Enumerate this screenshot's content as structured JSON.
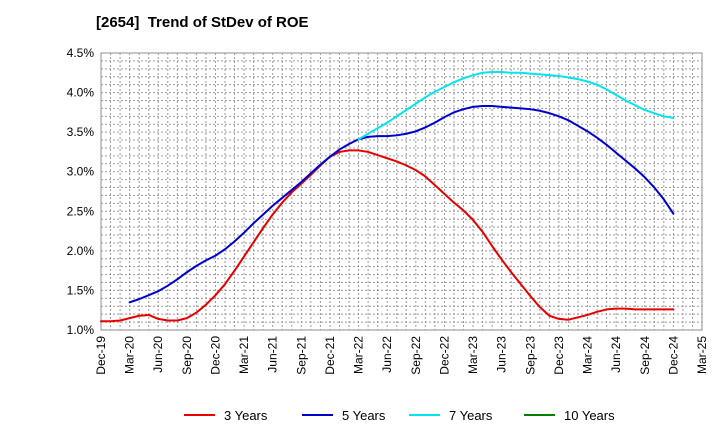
{
  "chart_data": {
    "type": "line",
    "title": "[2654]  Trend of StDev of ROE",
    "xlabel": "",
    "ylabel": "",
    "x_ticks": [
      "Dec-19",
      "Mar-20",
      "Jun-20",
      "Sep-20",
      "Dec-20",
      "Mar-21",
      "Jun-21",
      "Sep-21",
      "Dec-21",
      "Mar-22",
      "Jun-22",
      "Sep-22",
      "Dec-22",
      "Mar-23",
      "Jun-23",
      "Sep-23",
      "Dec-23",
      "Mar-24",
      "Jun-24",
      "Sep-24",
      "Dec-24",
      "Mar-25"
    ],
    "y_ticks": [
      "1.0%",
      "1.5%",
      "2.0%",
      "2.5%",
      "3.0%",
      "3.5%",
      "4.0%",
      "4.5%"
    ],
    "ylim": [
      1.0,
      4.5
    ],
    "grid": true,
    "legend_position": "bottom",
    "series": [
      {
        "name": "3 Years",
        "color": "#e60000",
        "points": [
          [
            "Dec-19",
            1.11
          ],
          [
            "Jan-20",
            1.11
          ],
          [
            "Feb-20",
            1.12
          ],
          [
            "Mar-20",
            1.15
          ],
          [
            "Apr-20",
            1.18
          ],
          [
            "May-20",
            1.19
          ],
          [
            "Jun-20",
            1.14
          ],
          [
            "Jul-20",
            1.12
          ],
          [
            "Aug-20",
            1.12
          ],
          [
            "Sep-20",
            1.15
          ],
          [
            "Oct-20",
            1.22
          ],
          [
            "Nov-20",
            1.32
          ],
          [
            "Dec-20",
            1.44
          ],
          [
            "Jan-21",
            1.58
          ],
          [
            "Feb-21",
            1.75
          ],
          [
            "Mar-21",
            1.93
          ],
          [
            "Apr-21",
            2.11
          ],
          [
            "May-21",
            2.29
          ],
          [
            "Jun-21",
            2.46
          ],
          [
            "Jul-21",
            2.61
          ],
          [
            "Aug-21",
            2.74
          ],
          [
            "Sep-21",
            2.85
          ],
          [
            "Oct-21",
            2.96
          ],
          [
            "Nov-21",
            3.08
          ],
          [
            "Dec-21",
            3.19
          ],
          [
            "Jan-22",
            3.25
          ],
          [
            "Feb-22",
            3.27
          ],
          [
            "Mar-22",
            3.27
          ],
          [
            "Apr-22",
            3.25
          ],
          [
            "May-22",
            3.21
          ],
          [
            "Jun-22",
            3.17
          ],
          [
            "Jul-22",
            3.13
          ],
          [
            "Aug-22",
            3.08
          ],
          [
            "Sep-22",
            3.02
          ],
          [
            "Oct-22",
            2.94
          ],
          [
            "Nov-22",
            2.83
          ],
          [
            "Dec-22",
            2.72
          ],
          [
            "Jan-23",
            2.61
          ],
          [
            "Feb-23",
            2.51
          ],
          [
            "Mar-23",
            2.39
          ],
          [
            "Apr-23",
            2.24
          ],
          [
            "May-23",
            2.06
          ],
          [
            "Jun-23",
            1.89
          ],
          [
            "Jul-23",
            1.73
          ],
          [
            "Aug-23",
            1.58
          ],
          [
            "Sep-23",
            1.43
          ],
          [
            "Oct-23",
            1.29
          ],
          [
            "Nov-23",
            1.18
          ],
          [
            "Dec-23",
            1.14
          ],
          [
            "Jan-24",
            1.13
          ],
          [
            "Feb-24",
            1.16
          ],
          [
            "Mar-24",
            1.19
          ],
          [
            "Apr-24",
            1.23
          ],
          [
            "May-24",
            1.26
          ],
          [
            "Jun-24",
            1.27
          ],
          [
            "Jul-24",
            1.27
          ],
          [
            "Aug-24",
            1.26
          ],
          [
            "Sep-24",
            1.26
          ],
          [
            "Oct-24",
            1.26
          ],
          [
            "Nov-24",
            1.26
          ],
          [
            "Dec-24",
            1.26
          ]
        ]
      },
      {
        "name": "5 Years",
        "color": "#0000cc",
        "points": [
          [
            "Mar-20",
            1.35
          ],
          [
            "Apr-20",
            1.39
          ],
          [
            "May-20",
            1.44
          ],
          [
            "Jun-20",
            1.49
          ],
          [
            "Jul-20",
            1.56
          ],
          [
            "Aug-20",
            1.64
          ],
          [
            "Sep-20",
            1.73
          ],
          [
            "Oct-20",
            1.81
          ],
          [
            "Nov-20",
            1.88
          ],
          [
            "Dec-20",
            1.94
          ],
          [
            "Jan-21",
            2.02
          ],
          [
            "Feb-21",
            2.12
          ],
          [
            "Mar-21",
            2.23
          ],
          [
            "Apr-21",
            2.35
          ],
          [
            "May-21",
            2.46
          ],
          [
            "Jun-21",
            2.57
          ],
          [
            "Jul-21",
            2.67
          ],
          [
            "Aug-21",
            2.77
          ],
          [
            "Sep-21",
            2.87
          ],
          [
            "Oct-21",
            2.98
          ],
          [
            "Nov-21",
            3.09
          ],
          [
            "Dec-21",
            3.19
          ],
          [
            "Jan-22",
            3.28
          ],
          [
            "Feb-22",
            3.35
          ],
          [
            "Mar-22",
            3.41
          ],
          [
            "Apr-22",
            3.44
          ],
          [
            "May-22",
            3.45
          ],
          [
            "Jun-22",
            3.45
          ],
          [
            "Jul-22",
            3.46
          ],
          [
            "Aug-22",
            3.48
          ],
          [
            "Sep-22",
            3.51
          ],
          [
            "Oct-22",
            3.56
          ],
          [
            "Nov-22",
            3.62
          ],
          [
            "Dec-22",
            3.69
          ],
          [
            "Jan-23",
            3.75
          ],
          [
            "Feb-23",
            3.79
          ],
          [
            "Mar-23",
            3.82
          ],
          [
            "Apr-23",
            3.83
          ],
          [
            "May-23",
            3.83
          ],
          [
            "Jun-23",
            3.82
          ],
          [
            "Jul-23",
            3.81
          ],
          [
            "Aug-23",
            3.8
          ],
          [
            "Sep-23",
            3.79
          ],
          [
            "Oct-23",
            3.77
          ],
          [
            "Nov-23",
            3.74
          ],
          [
            "Dec-23",
            3.7
          ],
          [
            "Jan-24",
            3.65
          ],
          [
            "Feb-24",
            3.58
          ],
          [
            "Mar-24",
            3.51
          ],
          [
            "Apr-24",
            3.43
          ],
          [
            "May-24",
            3.34
          ],
          [
            "Jun-24",
            3.24
          ],
          [
            "Jul-24",
            3.14
          ],
          [
            "Aug-24",
            3.04
          ],
          [
            "Sep-24",
            2.93
          ],
          [
            "Oct-24",
            2.8
          ],
          [
            "Nov-24",
            2.65
          ],
          [
            "Dec-24",
            2.47
          ]
        ]
      },
      {
        "name": "7 Years",
        "color": "#00e5ee",
        "points": [
          [
            "Mar-22",
            3.41
          ],
          [
            "Apr-22",
            3.48
          ],
          [
            "May-22",
            3.55
          ],
          [
            "Jun-22",
            3.62
          ],
          [
            "Jul-22",
            3.7
          ],
          [
            "Aug-22",
            3.78
          ],
          [
            "Sep-22",
            3.86
          ],
          [
            "Oct-22",
            3.94
          ],
          [
            "Nov-22",
            4.01
          ],
          [
            "Dec-22",
            4.07
          ],
          [
            "Jan-23",
            4.13
          ],
          [
            "Feb-23",
            4.18
          ],
          [
            "Mar-23",
            4.22
          ],
          [
            "Apr-23",
            4.25
          ],
          [
            "May-23",
            4.26
          ],
          [
            "Jun-23",
            4.26
          ],
          [
            "Jul-23",
            4.25
          ],
          [
            "Aug-23",
            4.25
          ],
          [
            "Sep-23",
            4.24
          ],
          [
            "Oct-23",
            4.23
          ],
          [
            "Nov-23",
            4.22
          ],
          [
            "Dec-23",
            4.21
          ],
          [
            "Jan-24",
            4.19
          ],
          [
            "Feb-24",
            4.17
          ],
          [
            "Mar-24",
            4.14
          ],
          [
            "Apr-24",
            4.1
          ],
          [
            "May-24",
            4.04
          ],
          [
            "Jun-24",
            3.97
          ],
          [
            "Jul-24",
            3.9
          ],
          [
            "Aug-24",
            3.84
          ],
          [
            "Sep-24",
            3.78
          ],
          [
            "Oct-24",
            3.74
          ],
          [
            "Nov-24",
            3.7
          ],
          [
            "Dec-24",
            3.68
          ]
        ]
      },
      {
        "name": "10 Years",
        "color": "#008000",
        "points": []
      }
    ]
  }
}
